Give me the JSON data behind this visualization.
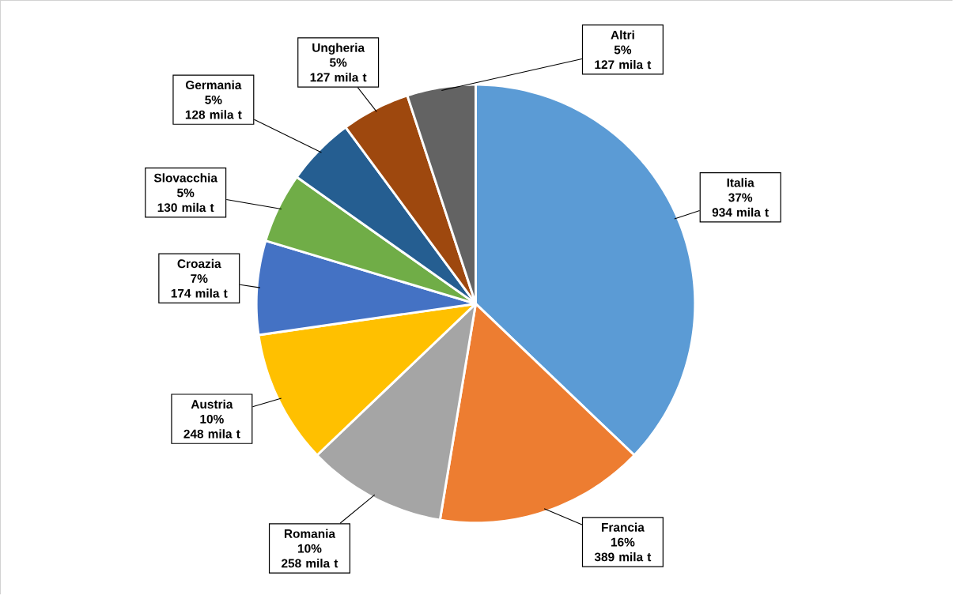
{
  "chart_data": {
    "type": "pie",
    "categories": [
      "Italia",
      "Francia",
      "Romania",
      "Austria",
      "Croazia",
      "Slovacchia",
      "Germania",
      "Ungheria",
      "Altri"
    ],
    "values": [
      934,
      389,
      258,
      248,
      174,
      130,
      128,
      127,
      127
    ],
    "value_labels": [
      "37% 934 mila t",
      "16% 389 mila t",
      "10% 258 mila t",
      "10% 248 mila t",
      "7% 174 mila t",
      "5% 130 mila t",
      "5% 128 mila t",
      "5% 127 mila t",
      "5% 127 mila t"
    ],
    "colors": [
      "#5b9bd5",
      "#ed7d31",
      "#a5a5a5",
      "#ffc000",
      "#4472c4",
      "#70ad47",
      "#255e91",
      "#9e480e",
      "#636363"
    ]
  }
}
